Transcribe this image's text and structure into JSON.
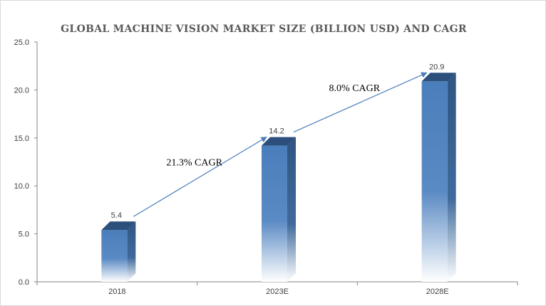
{
  "chart_data": {
    "type": "bar",
    "title": "GLOBAL MACHINE VISION MARKET SIZE  (BILLION USD) AND CAGR",
    "categories": [
      "2018",
      "2023E",
      "2028E"
    ],
    "values": [
      5.4,
      14.2,
      20.9
    ],
    "data_labels": [
      "5.4",
      "14.2",
      "20.9"
    ],
    "ylim": [
      0,
      25
    ],
    "yticks": [
      "0.0",
      "5.0",
      "10.0",
      "15.0",
      "20.0",
      "25.0"
    ],
    "ytick_values": [
      0,
      5,
      10,
      15,
      20,
      25
    ],
    "grid": false,
    "style": "3d-column-gradient",
    "bar_color": "#4a7ebb",
    "bar_top_color": "#2c4f7c",
    "bar_side_color": "#2f5682",
    "arrow_color": "#4a7ebb",
    "annotations": [
      {
        "text": "21.3% CAGR",
        "from_category": 0,
        "to_category": 1
      },
      {
        "text": "8.0% CAGR",
        "from_category": 1,
        "to_category": 2
      }
    ]
  }
}
